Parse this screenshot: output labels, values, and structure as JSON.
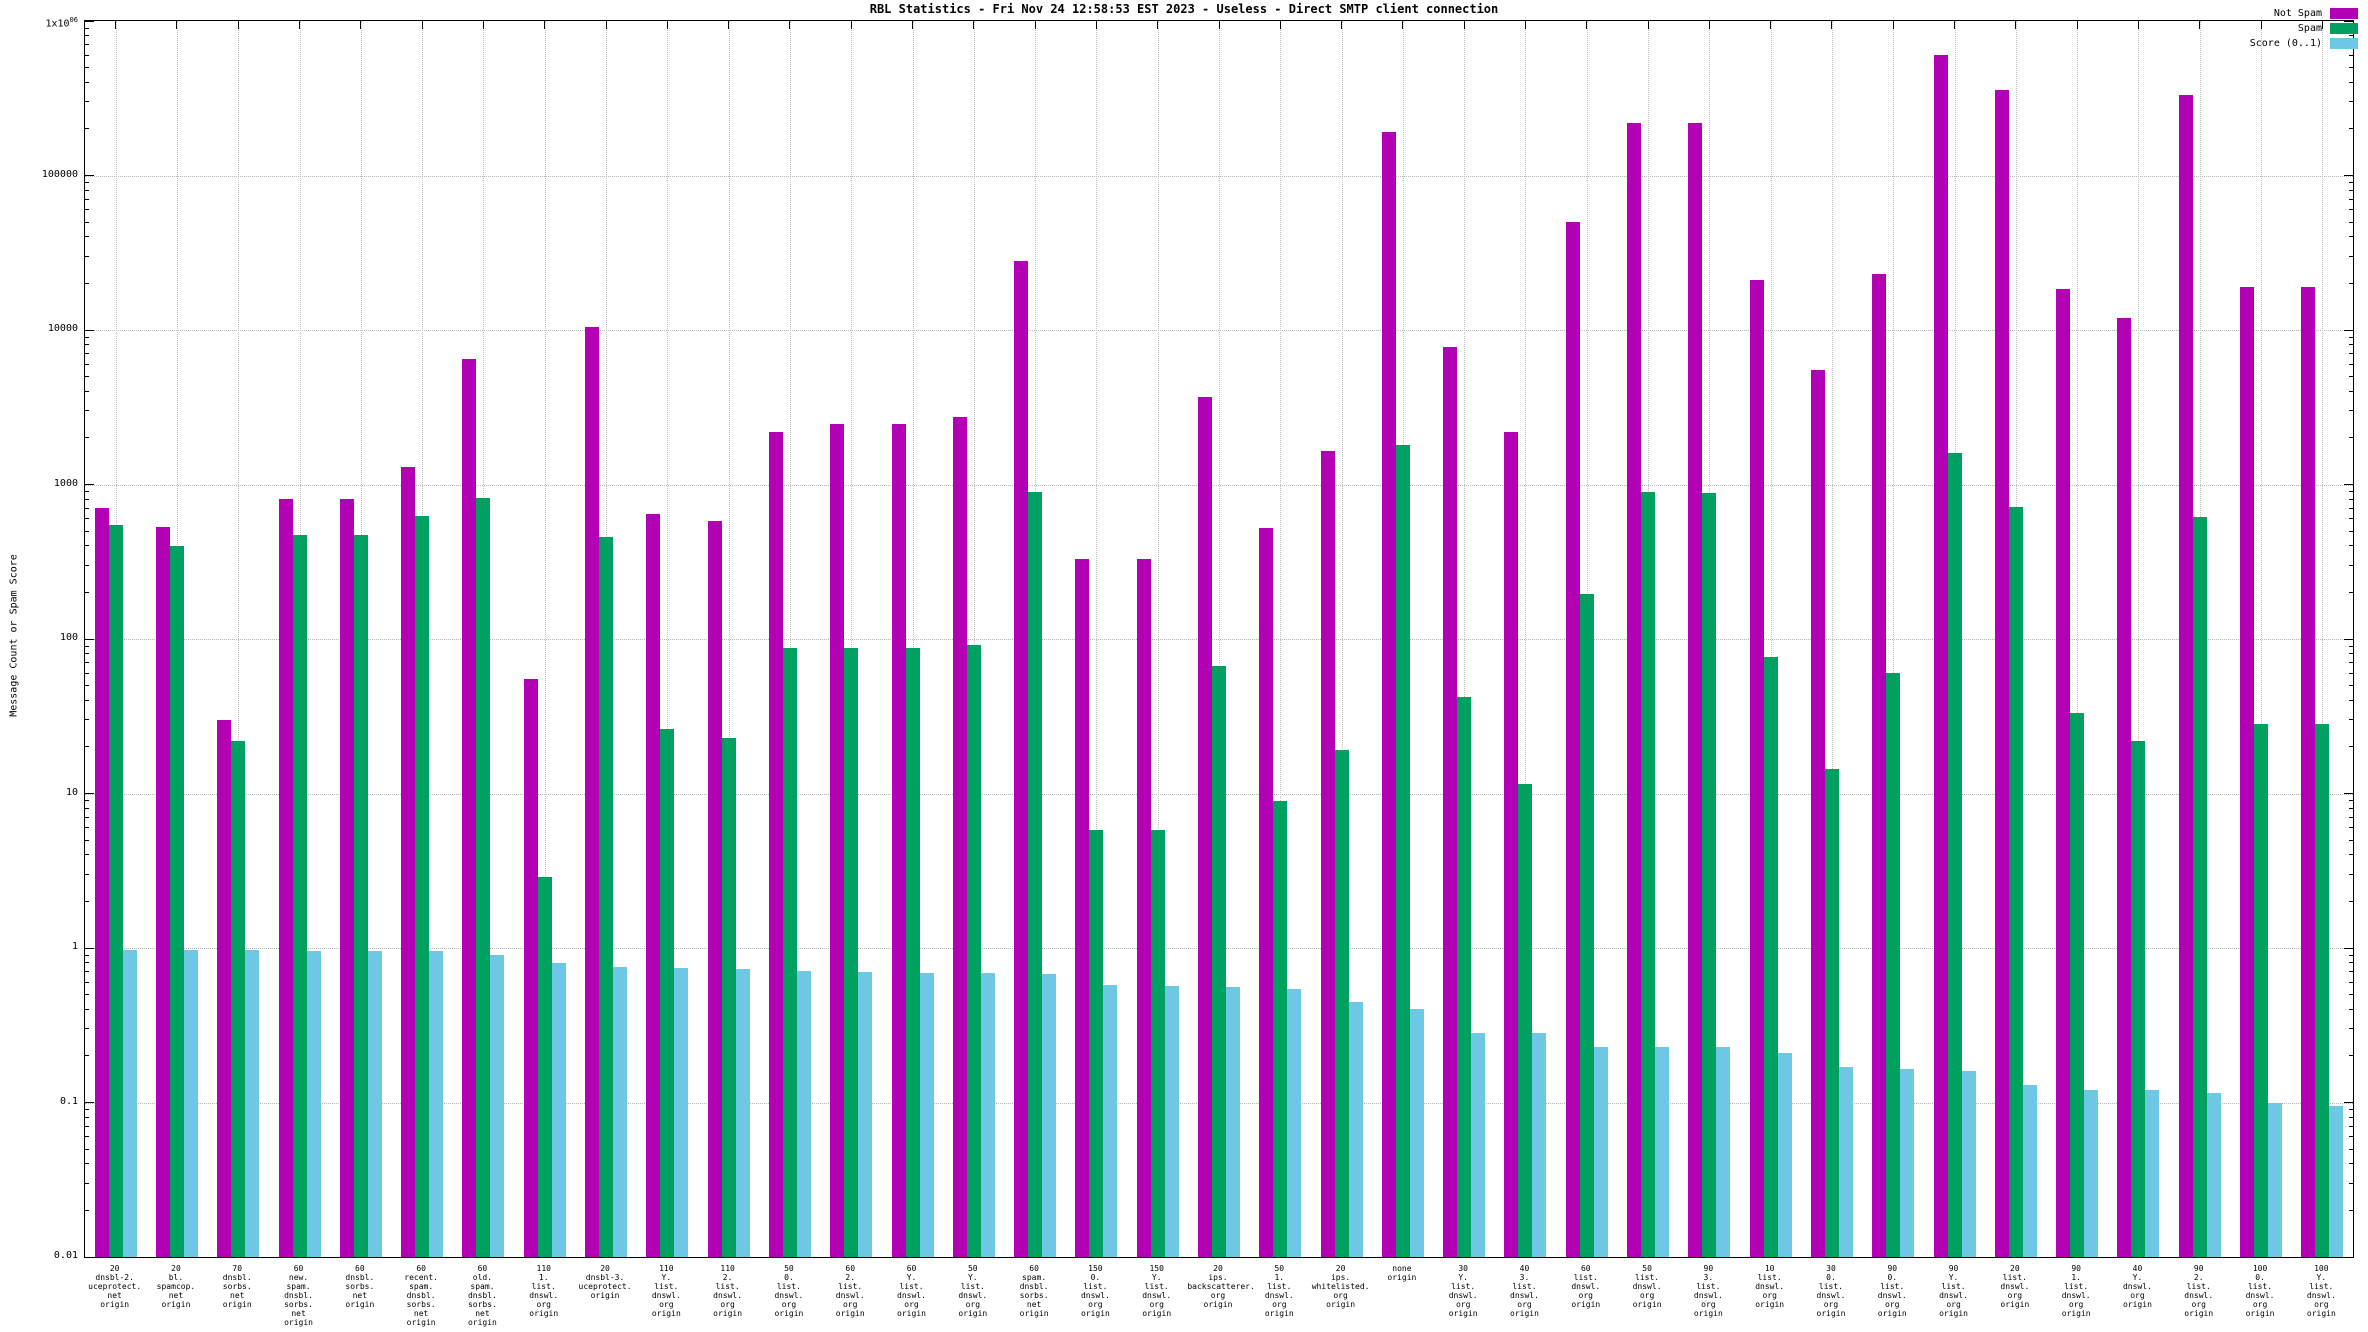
{
  "title": "RBL Statistics - Fri Nov 24 12:58:53 EST 2023 - Useless - Direct SMTP client connection",
  "ylabel": "Message Count or Spam Score",
  "legend": [
    {
      "label": "Not Spam",
      "color": "#b400b4"
    },
    {
      "label": "Spam",
      "color": "#00a060"
    },
    {
      "label": "Score (0..1)",
      "color": "#6fc7e6"
    }
  ],
  "chart_data": {
    "type": "bar",
    "scale": "log",
    "ylim": [
      0.01,
      1000000
    ],
    "ytick_labels": [
      "0.01",
      "0.1",
      "1",
      "10",
      "100",
      "1000",
      "10000",
      "100000",
      "1x10^06"
    ],
    "grid": true,
    "legend_position": "top-right",
    "categories": [
      [
        "20",
        "dnsbl-2.",
        "uceprotect.",
        "net",
        "origin"
      ],
      [
        "20",
        "bl.",
        "spamcop.",
        "net",
        "origin"
      ],
      [
        "70",
        "dnsbl.",
        "sorbs.",
        "net",
        "origin"
      ],
      [
        "60",
        "new.",
        "spam.",
        "dnsbl.",
        "sorbs.",
        "net",
        "origin"
      ],
      [
        "60",
        "dnsbl.",
        "sorbs.",
        "net",
        "origin"
      ],
      [
        "60",
        "recent.",
        "spam.",
        "dnsbl.",
        "sorbs.",
        "net",
        "origin"
      ],
      [
        "60",
        "old.",
        "spam.",
        "dnsbl.",
        "sorbs.",
        "net",
        "origin"
      ],
      [
        "110",
        "1.",
        "list.",
        "dnswl.",
        "org",
        "origin"
      ],
      [
        "20",
        "dnsbl-3.",
        "uceprotect.",
        "origin"
      ],
      [
        "110",
        "Y.",
        "list.",
        "dnswl.",
        "org",
        "origin"
      ],
      [
        "110",
        "2.",
        "list.",
        "dnswl.",
        "org",
        "origin"
      ],
      [
        "50",
        "0.",
        "list.",
        "dnswl.",
        "org",
        "origin"
      ],
      [
        "60",
        "2.",
        "list.",
        "dnswl.",
        "org",
        "origin"
      ],
      [
        "60",
        "Y.",
        "list.",
        "dnswl.",
        "org",
        "origin"
      ],
      [
        "50",
        "Y.",
        "list.",
        "dnswl.",
        "org",
        "origin"
      ],
      [
        "60",
        "spam.",
        "dnsbl.",
        "sorbs.",
        "net",
        "origin"
      ],
      [
        "150",
        "0.",
        "list.",
        "dnswl.",
        "org",
        "origin"
      ],
      [
        "150",
        "Y.",
        "list.",
        "dnswl.",
        "org",
        "origin"
      ],
      [
        "20",
        "ips.",
        "backscatterer.",
        "org",
        "origin"
      ],
      [
        "50",
        "1.",
        "list.",
        "dnswl.",
        "org",
        "origin"
      ],
      [
        "20",
        "ips.",
        "whitelisted.",
        "org",
        "origin"
      ],
      [
        "none",
        "origin"
      ],
      [
        "30",
        "Y.",
        "list.",
        "dnswl.",
        "org",
        "origin"
      ],
      [
        "40",
        "3.",
        "list.",
        "dnswl.",
        "org",
        "origin"
      ],
      [
        "60",
        "list.",
        "dnswl.",
        "org",
        "origin"
      ],
      [
        "50",
        "list.",
        "dnswl.",
        "org",
        "origin"
      ],
      [
        "90",
        "3.",
        "list.",
        "dnswl.",
        "org",
        "origin"
      ],
      [
        "10",
        "list.",
        "dnswl.",
        "org",
        "origin"
      ],
      [
        "30",
        "0.",
        "list.",
        "dnswl.",
        "org",
        "origin"
      ],
      [
        "90",
        "0.",
        "list.",
        "dnswl.",
        "org",
        "origin"
      ],
      [
        "90",
        "Y.",
        "list.",
        "dnswl.",
        "org",
        "origin"
      ],
      [
        "20",
        "list.",
        "dnswl.",
        "org",
        "origin"
      ],
      [
        "90",
        "1.",
        "list.",
        "dnswl.",
        "org",
        "origin"
      ],
      [
        "40",
        "Y.",
        "dnswl.",
        "org",
        "origin"
      ],
      [
        "90",
        "2.",
        "list.",
        "dnswl.",
        "org",
        "origin"
      ],
      [
        "100",
        "0.",
        "list.",
        "dnswl.",
        "org",
        "origin"
      ],
      [
        "100",
        "Y.",
        "list.",
        "dnswl.",
        "org",
        "origin"
      ]
    ],
    "series": [
      {
        "key": "not-spam",
        "name": "Not Spam",
        "color": "#b400b4",
        "values": [
          700,
          530,
          30,
          800,
          800,
          1300,
          6500,
          55,
          10500,
          640,
          580,
          2200,
          2450,
          2450,
          2750,
          28000,
          330,
          330,
          3700,
          520,
          1650,
          190000,
          7800,
          2200,
          50000,
          220000,
          220000,
          21000,
          5500,
          23000,
          600000,
          360000,
          18500,
          12000,
          330000,
          19000,
          19000
        ]
      },
      {
        "key": "spam",
        "name": "Spam",
        "color": "#00a060",
        "values": [
          550,
          400,
          22,
          470,
          470,
          630,
          820,
          2.9,
          460,
          26,
          23,
          87,
          87,
          87,
          92,
          900,
          5.8,
          5.8,
          67,
          9,
          19,
          1800,
          42,
          11.5,
          195,
          890,
          880,
          77,
          14.5,
          60,
          1600,
          720,
          33,
          22,
          620,
          28,
          28
        ]
      },
      {
        "key": "score",
        "name": "Score (0..1)",
        "color": "#6fc7e6",
        "values": [
          0.97,
          0.97,
          0.97,
          0.96,
          0.96,
          0.96,
          0.9,
          0.8,
          0.75,
          0.74,
          0.73,
          0.71,
          0.7,
          0.69,
          0.69,
          0.68,
          0.58,
          0.57,
          0.56,
          0.54,
          0.45,
          0.4,
          0.28,
          0.28,
          0.23,
          0.23,
          0.23,
          0.21,
          0.17,
          0.165,
          0.16,
          0.13,
          0.12,
          0.12,
          0.115,
          0.1,
          0.095
        ]
      }
    ]
  }
}
